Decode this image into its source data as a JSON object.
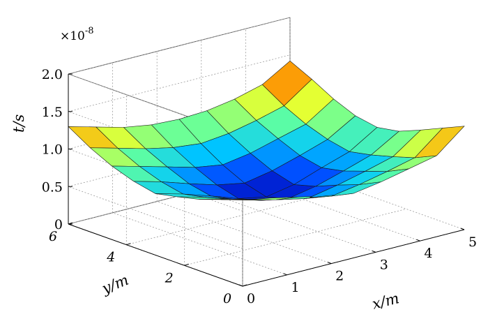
{
  "chart_data": {
    "type": "surface3d",
    "title": "",
    "scale_label": "×10",
    "scale_exponent": "-8",
    "x_label": "x/m",
    "y_label": "y/m",
    "z_label": "t/s",
    "x_ticks": [
      "0",
      "1",
      "2",
      "3",
      "4",
      "5"
    ],
    "y_ticks": [
      "0",
      "2",
      "4",
      "6"
    ],
    "z_ticks": [
      "0",
      "0.5",
      "1.0",
      "1.5",
      "2.0"
    ],
    "xlim": [
      0,
      5
    ],
    "ylim": [
      0,
      6
    ],
    "zlim": [
      0,
      2.0
    ],
    "grid": true,
    "colormap": "jet",
    "colormap_stops": [
      "#0000b4",
      "#0050ff",
      "#00c8ff",
      "#60ffa0",
      "#e8ff30",
      "#ff9000",
      "#e01800"
    ],
    "z_units": "×10^-8 s",
    "x": [
      0,
      0.625,
      1.25,
      1.875,
      2.5,
      3.125,
      3.75,
      4.375,
      5.0
    ],
    "y": [
      0,
      0.75,
      1.5,
      2.25,
      3.0,
      3.75,
      4.5,
      5.25,
      6.0
    ],
    "z": [
      [
        1.15,
        1.08,
        1.0,
        0.92,
        0.86,
        0.92,
        1.0,
        1.08,
        1.38
      ],
      [
        1.05,
        0.95,
        0.86,
        0.78,
        0.72,
        0.78,
        0.86,
        0.95,
        1.25
      ],
      [
        0.95,
        0.86,
        0.76,
        0.67,
        0.6,
        0.67,
        0.76,
        0.86,
        1.12
      ],
      [
        0.88,
        0.78,
        0.66,
        0.55,
        0.48,
        0.55,
        0.66,
        0.78,
        1.0
      ],
      [
        0.82,
        0.72,
        0.6,
        0.47,
        0.4,
        0.47,
        0.6,
        0.72,
        0.95
      ],
      [
        0.88,
        0.78,
        0.66,
        0.55,
        0.48,
        0.55,
        0.66,
        0.78,
        1.0
      ],
      [
        0.98,
        0.88,
        0.78,
        0.68,
        0.62,
        0.68,
        0.78,
        0.88,
        1.12
      ],
      [
        1.12,
        1.02,
        0.92,
        0.84,
        0.8,
        0.84,
        0.92,
        1.02,
        1.28
      ],
      [
        1.3,
        1.2,
        1.1,
        1.04,
        1.02,
        1.04,
        1.1,
        1.2,
        1.42
      ]
    ]
  }
}
